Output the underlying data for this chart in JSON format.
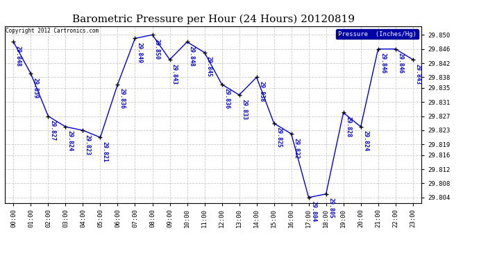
{
  "title": "Barometric Pressure per Hour (24 Hours) 20120819",
  "hours": [
    "00:00",
    "01:00",
    "02:00",
    "03:00",
    "04:00",
    "05:00",
    "06:00",
    "07:00",
    "08:00",
    "09:00",
    "10:00",
    "11:00",
    "12:00",
    "13:00",
    "14:00",
    "15:00",
    "16:00",
    "17:00",
    "18:00",
    "19:00",
    "20:00",
    "21:00",
    "22:00",
    "23:00"
  ],
  "values": [
    29.848,
    29.839,
    29.827,
    29.824,
    29.823,
    29.821,
    29.836,
    29.849,
    29.85,
    29.843,
    29.848,
    29.845,
    29.836,
    29.833,
    29.838,
    29.825,
    29.822,
    29.804,
    29.805,
    29.828,
    29.824,
    29.846,
    29.846,
    29.843
  ],
  "ylim": [
    29.8025,
    29.8525
  ],
  "yticks": [
    29.804,
    29.808,
    29.812,
    29.816,
    29.819,
    29.823,
    29.827,
    29.831,
    29.835,
    29.838,
    29.842,
    29.846,
    29.85
  ],
  "line_color": "#0000CC",
  "marker_color": "#000000",
  "bg_color": "#ffffff",
  "grid_color": "#c8c8c8",
  "legend_label": "Pressure  (Inches/Hg)",
  "legend_bg": "#0000AA",
  "legend_fg": "#ffffff",
  "copyright_text": "Copyright 2012 Cartronics.com",
  "title_fontsize": 11,
  "label_fontsize": 6.5,
  "annotation_fontsize": 6.0
}
